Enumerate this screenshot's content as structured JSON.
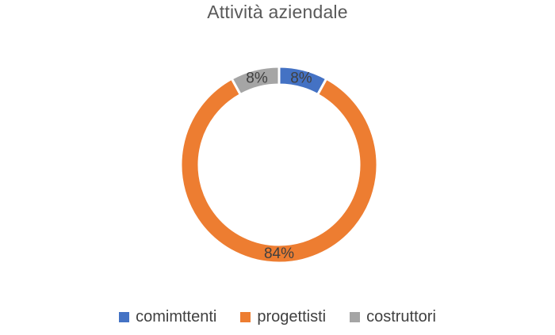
{
  "chart_data": {
    "type": "pie",
    "title": "Attività aziendale",
    "donut": true,
    "categories": [
      "comimttenti",
      "progettisti",
      "costruttori"
    ],
    "values": [
      8,
      84,
      8
    ],
    "labels": [
      "8%",
      "84%",
      "8%"
    ],
    "colors": [
      "#4472C4",
      "#ED7D31",
      "#A5A5A5"
    ],
    "legend_position": "bottom",
    "start_angle_deg": 0,
    "direction": "clockwise"
  }
}
